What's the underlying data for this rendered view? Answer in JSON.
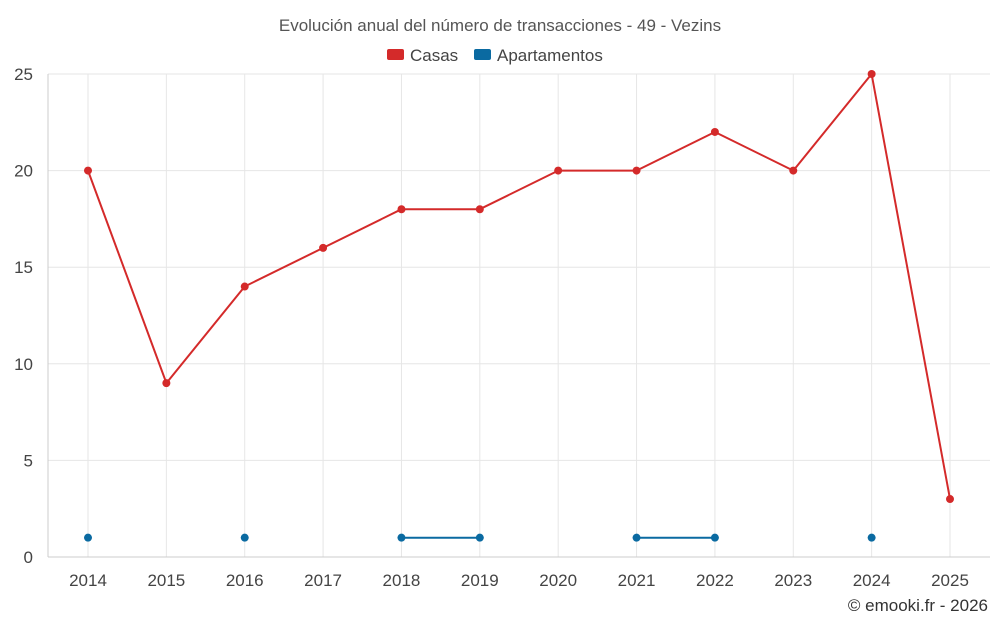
{
  "chart_data": {
    "type": "line",
    "title": "Evolución anual del número de transacciones - 49 - Vezins",
    "xlabel": "",
    "ylabel": "",
    "categories": [
      "2014",
      "2015",
      "2016",
      "2017",
      "2018",
      "2019",
      "2020",
      "2021",
      "2022",
      "2023",
      "2024",
      "2025"
    ],
    "ylim": [
      0,
      25
    ],
    "yticks": [
      0,
      5,
      10,
      15,
      20,
      25
    ],
    "grid": true,
    "legend_position": "top-center",
    "series": [
      {
        "name": "Casas",
        "color": "#d42a2a",
        "values": [
          20,
          9,
          14,
          16,
          18,
          18,
          20,
          20,
          22,
          20,
          25,
          3
        ]
      },
      {
        "name": "Apartamentos",
        "color": "#0a6aa1",
        "values": [
          1,
          null,
          1,
          null,
          1,
          1,
          null,
          1,
          1,
          null,
          1,
          null
        ]
      }
    ],
    "credit": "© emooki.fr - 2026"
  }
}
